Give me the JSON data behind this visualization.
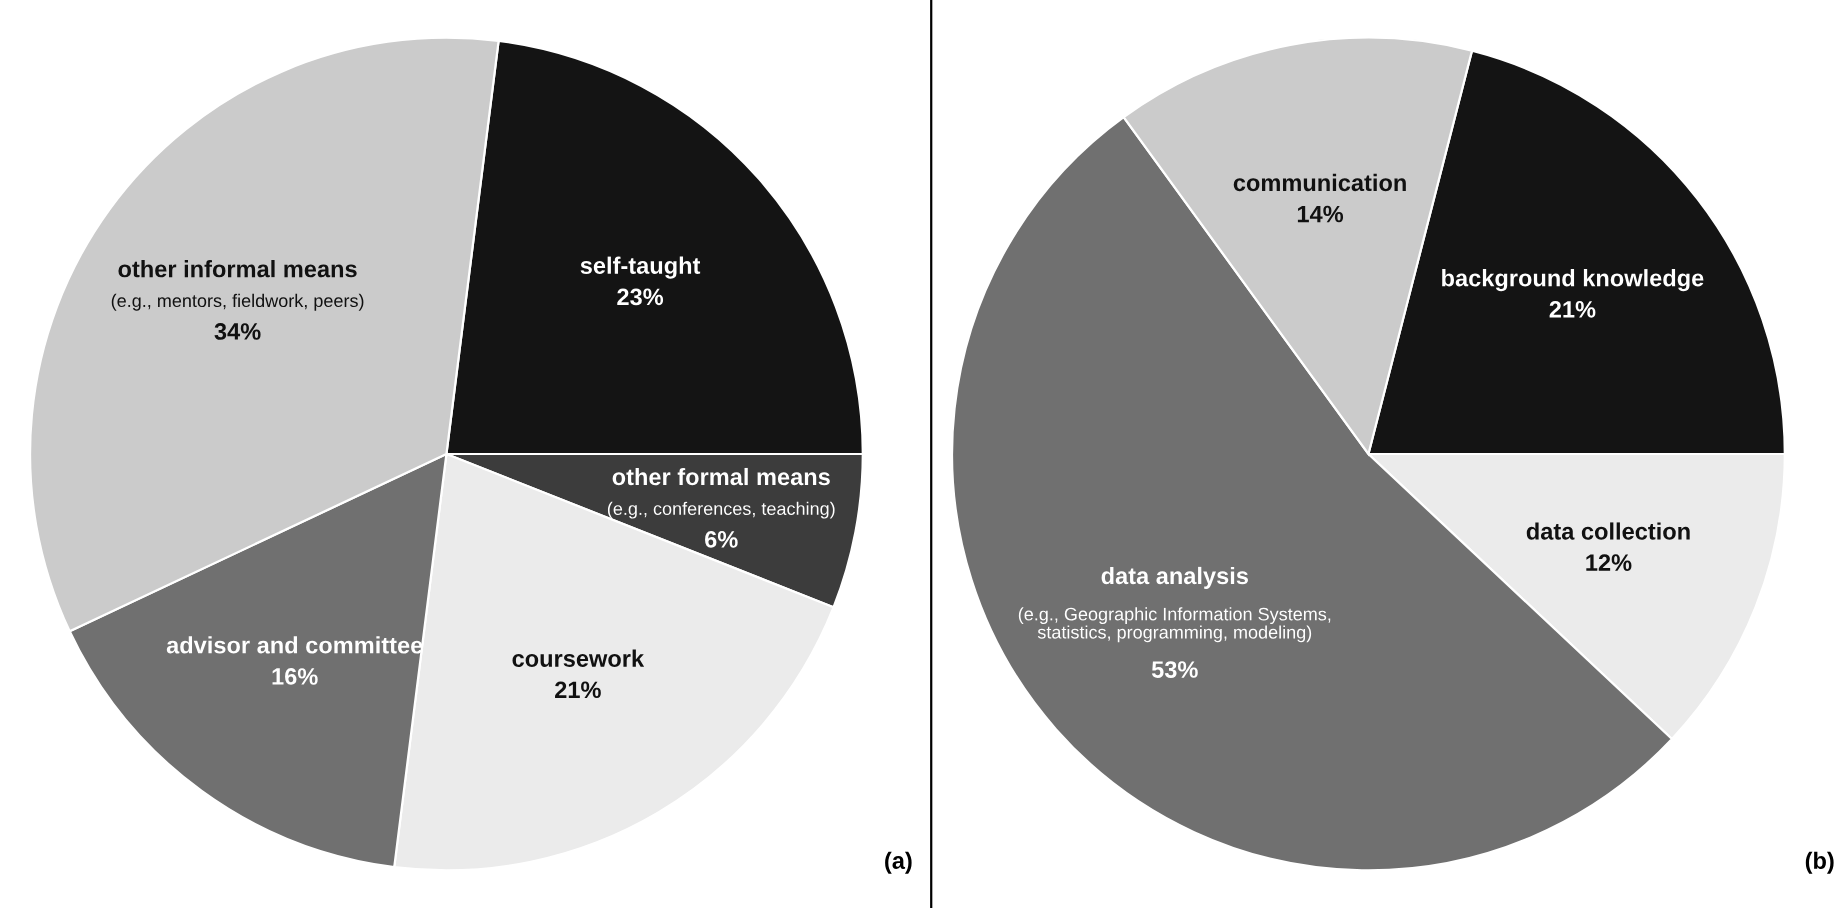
{
  "chart_data": [
    {
      "type": "pie",
      "title": "(a)",
      "categories": [
        "self-taught",
        "other formal means",
        "coursework",
        "advisor and committee",
        "other informal means"
      ],
      "values": [
        23,
        6,
        21,
        16,
        34
      ],
      "colors": [
        "#141414",
        "#3c3c3c",
        "#ebebeb",
        "#707070",
        "#cbcbcb"
      ],
      "value_labels": [
        "23%",
        "6%",
        "21%",
        "16%",
        "34%"
      ],
      "legend": false,
      "annotations": [
        {
          "text": "(e.g., conferences, teaching)",
          "x": "other formal means"
        },
        {
          "text": "(e.g., mentors, fieldwork, peers)",
          "x": "other informal means"
        }
      ]
    },
    {
      "type": "pie",
      "title": "(b)",
      "categories": [
        "background knowledge",
        "data collection",
        "data analysis",
        "communication"
      ],
      "values": [
        21,
        12,
        53,
        14
      ],
      "colors": [
        "#141414",
        "#ebebeb",
        "#707070",
        "#cbcbcb"
      ],
      "value_labels": [
        "21%",
        "12%",
        "53%",
        "14%"
      ],
      "legend": false,
      "annotations": [
        {
          "text": "(e.g., Geographic Information Systems,\nstatistics, programming, modeling)",
          "x": "data analysis"
        }
      ]
    }
  ]
}
